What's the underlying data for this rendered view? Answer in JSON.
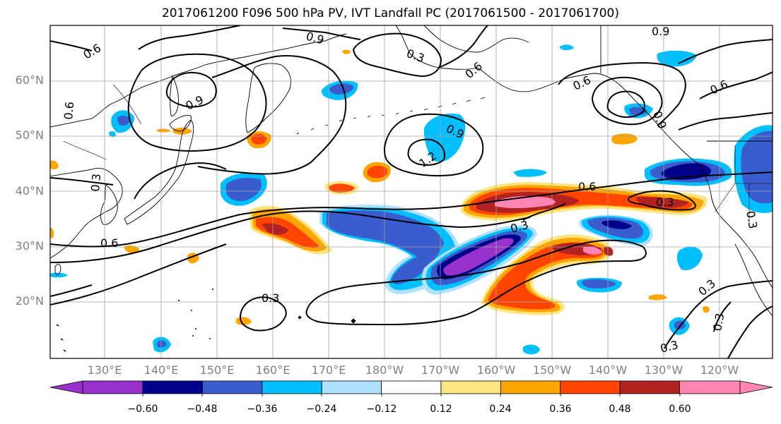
{
  "title": "2017061200 F096 500 hPa PV, IVT Landfall PC (2017061500 - 2017061700)",
  "latitude_labels": [
    "60°N",
    "50°N",
    "40°N",
    "30°N",
    "20°N"
  ],
  "longitude_labels": [
    "130°E",
    "140°E",
    "150°E",
    "160°E",
    "170°E",
    "180°W",
    "170°W",
    "160°W",
    "150°W",
    "140°W",
    "130°W",
    "120°W"
  ],
  "contour_labels": [
    "0.6",
    "0.9",
    "0.3",
    "0.6",
    "0.6",
    "0.6",
    "0.9",
    "0.6",
    "0.9",
    "1.2",
    "0.9",
    "0.6",
    "0.3",
    "0.3",
    "0.6",
    "0.3",
    "0.3",
    "0.3",
    "0.3",
    "0.3",
    "0.3",
    "0.9"
  ],
  "colorbar": {
    "ticks": [
      "−0.60",
      "−0.48",
      "−0.36",
      "−0.24",
      "−0.12",
      "0.12",
      "0.24",
      "0.36",
      "0.48",
      "0.60"
    ],
    "colors": [
      "#9932cc",
      "#00008b",
      "#3a5ccc",
      "#00bfff",
      "#b0e2ff",
      "#ffffff",
      "#ffe57f",
      "#ffa500",
      "#ff4500",
      "#b22222",
      "#ff85b4"
    ],
    "extend": "both"
  },
  "colors": {
    "purple": "#9932cc",
    "navy": "#00008b",
    "blue": "#3a5ccc",
    "cyan": "#00bfff",
    "lightblue": "#b0e2ff",
    "yellow": "#ffe57f",
    "orange": "#ffa500",
    "redorange": "#ff4500",
    "darkred": "#b22222",
    "pink": "#ff85b4"
  }
}
